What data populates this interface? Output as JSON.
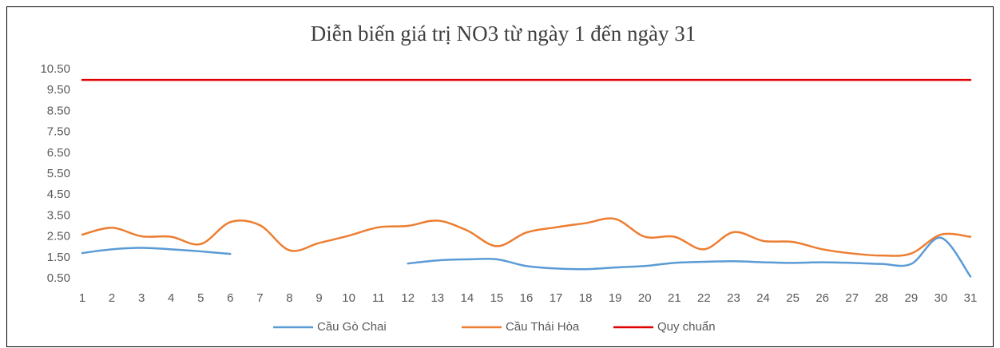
{
  "chart_data": {
    "type": "line",
    "title": "Diễn biến giá trị NO3 từ ngày  1 đến ngày  31",
    "categories": [
      "1",
      "2",
      "3",
      "4",
      "5",
      "6",
      "7",
      "8",
      "9",
      "10",
      "11",
      "12",
      "13",
      "14",
      "15",
      "16",
      "17",
      "18",
      "19",
      "20",
      "21",
      "22",
      "23",
      "24",
      "25",
      "26",
      "27",
      "28",
      "29",
      "30",
      "31"
    ],
    "series": [
      {
        "name": "Cầu Gò Chai",
        "color": "#5b9bd5",
        "values": [
          1.72,
          1.9,
          1.97,
          1.9,
          1.8,
          1.68,
          null,
          null,
          null,
          null,
          null,
          1.22,
          1.37,
          1.42,
          1.42,
          1.1,
          0.98,
          0.95,
          1.03,
          1.1,
          1.25,
          1.3,
          1.33,
          1.28,
          1.25,
          1.28,
          1.25,
          1.2,
          1.2,
          2.45,
          0.6
        ]
      },
      {
        "name": "Cầu Thái Hòa",
        "color": "#ed7d31",
        "values": [
          2.6,
          2.93,
          2.52,
          2.5,
          2.15,
          3.2,
          3.05,
          1.85,
          2.2,
          2.55,
          2.95,
          3.02,
          3.27,
          2.8,
          2.05,
          2.7,
          2.95,
          3.15,
          3.35,
          2.5,
          2.5,
          1.9,
          2.72,
          2.3,
          2.25,
          1.9,
          1.7,
          1.6,
          1.7,
          2.6,
          2.5
        ]
      },
      {
        "name": "Quy chuẩn",
        "color": "#e00000",
        "values": [
          10,
          10,
          10,
          10,
          10,
          10,
          10,
          10,
          10,
          10,
          10,
          10,
          10,
          10,
          10,
          10,
          10,
          10,
          10,
          10,
          10,
          10,
          10,
          10,
          10,
          10,
          10,
          10,
          10,
          10,
          10
        ]
      }
    ],
    "ylim": [
      0.5,
      10.5
    ],
    "yticks": [
      {
        "value": 0.5,
        "label": "0.50"
      },
      {
        "value": 1.5,
        "label": "1.50"
      },
      {
        "value": 2.5,
        "label": "2.50"
      },
      {
        "value": 3.5,
        "label": "3.50"
      },
      {
        "value": 4.5,
        "label": "4.50"
      },
      {
        "value": 5.5,
        "label": "5.50"
      },
      {
        "value": 6.5,
        "label": "6.50"
      },
      {
        "value": 7.5,
        "label": "7.50"
      },
      {
        "value": 8.5,
        "label": "8.50"
      },
      {
        "value": 9.5,
        "label": "9.50"
      },
      {
        "value": 10.5,
        "label": "10.50"
      }
    ],
    "legend": "bottom"
  }
}
